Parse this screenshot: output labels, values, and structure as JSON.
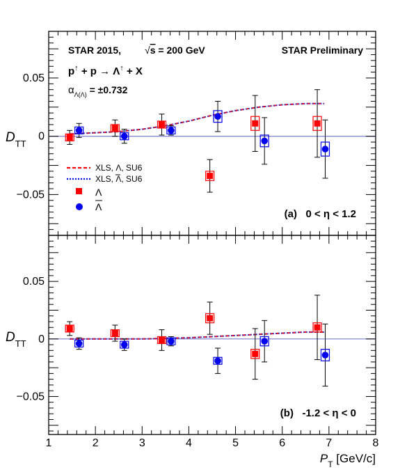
{
  "chart_data": {
    "type": "scatter",
    "x_axis": {
      "label": "P",
      "label_sub": "T",
      "label_unit": " [GeV/c]",
      "range": [
        1,
        8
      ],
      "ticks": [
        "1",
        "2",
        "3",
        "4",
        "5",
        "6",
        "7",
        "8"
      ]
    },
    "y_axis_label": "D",
    "y_axis_label_sub": "TT",
    "y_ticks": [
      "0.05",
      "0",
      "−0.05"
    ],
    "header": {
      "experiment": "STAR 2015,",
      "energy_sqrt": "√",
      "energy_s": "s",
      "energy_value": " = 200 GeV",
      "preliminary": "STAR Preliminary",
      "reaction_part1": "p",
      "reaction_up1": "↑",
      "reaction_part2": " + p → Λ",
      "reaction_up2": "↑",
      "reaction_part3": " + X",
      "alpha_symbol": "α",
      "alpha_sub": "Λ(Λ)",
      "alpha_value": " = ±0.732"
    },
    "legend": {
      "placement": "center-left of top panel",
      "entries": [
        {
          "text": "XLS, Λ, SU6",
          "style": "dashed",
          "color": "#ff0000"
        },
        {
          "text": "XLS, Λ, SU6",
          "style": "dotted",
          "color": "#0000ee",
          "overline": true
        },
        {
          "text": "Λ",
          "marker": "square",
          "color": "#ff0000"
        },
        {
          "text": "Λ",
          "marker": "circle",
          "color": "#0000ee",
          "overline": true
        }
      ]
    },
    "colors": {
      "lambda": "#ff0000",
      "antilambda": "#0000ee",
      "theory": "#7733aa",
      "zero_line": "#8a8ad8"
    },
    "panels": [
      {
        "label": "(a)   0 < η < 1.2",
        "ylim": [
          -0.085,
          0.09
        ],
        "lambda": [
          {
            "x": 1.45,
            "y": -0.001,
            "err": 0.006,
            "sys": 0.003
          },
          {
            "x": 2.42,
            "y": 0.007,
            "err": 0.007,
            "sys": 0.003
          },
          {
            "x": 3.42,
            "y": 0.01,
            "err": 0.009,
            "sys": 0.003
          },
          {
            "x": 4.45,
            "y": -0.034,
            "err": 0.014,
            "sys": 0.004
          },
          {
            "x": 5.42,
            "y": 0.011,
            "err": 0.024,
            "sys": 0.006
          },
          {
            "x": 6.75,
            "y": 0.011,
            "err": 0.029,
            "sys": 0.006
          }
        ],
        "antilambda": [
          {
            "x": 1.65,
            "y": 0.005,
            "err": 0.006,
            "sys": 0.003
          },
          {
            "x": 2.62,
            "y": 0.0,
            "err": 0.006,
            "sys": 0.003
          },
          {
            "x": 3.62,
            "y": 0.005,
            "err": 0.004,
            "sys": 0.003
          },
          {
            "x": 4.62,
            "y": 0.017,
            "err": 0.013,
            "sys": 0.005
          },
          {
            "x": 5.62,
            "y": -0.004,
            "err": 0.02,
            "sys": 0.005
          },
          {
            "x": 6.92,
            "y": -0.011,
            "err": 0.025,
            "sys": 0.006
          }
        ],
        "theory": {
          "x": [
            1.45,
            2.0,
            2.5,
            3.0,
            3.5,
            4.0,
            4.5,
            5.0,
            5.5,
            6.0,
            6.5,
            6.9
          ],
          "lambda": [
            0.002,
            0.003,
            0.004,
            0.006,
            0.009,
            0.013,
            0.018,
            0.022,
            0.025,
            0.027,
            0.028,
            0.028
          ],
          "antilambda": [
            0.002,
            0.003,
            0.004,
            0.006,
            0.009,
            0.013,
            0.018,
            0.022,
            0.025,
            0.027,
            0.028,
            0.028
          ]
        }
      },
      {
        "label": "(b)   -1.2 < η < 0",
        "ylim": [
          -0.083,
          0.09
        ],
        "lambda": [
          {
            "x": 1.45,
            "y": 0.009,
            "err": 0.006,
            "sys": 0.003
          },
          {
            "x": 2.42,
            "y": 0.005,
            "err": 0.007,
            "sys": 0.003
          },
          {
            "x": 3.42,
            "y": -0.001,
            "err": 0.009,
            "sys": 0.003
          },
          {
            "x": 4.45,
            "y": 0.018,
            "err": 0.014,
            "sys": 0.004
          },
          {
            "x": 5.42,
            "y": -0.013,
            "err": 0.022,
            "sys": 0.004
          },
          {
            "x": 6.75,
            "y": 0.01,
            "err": 0.028,
            "sys": 0.004
          }
        ],
        "antilambda": [
          {
            "x": 1.65,
            "y": -0.004,
            "err": 0.005,
            "sys": 0.003
          },
          {
            "x": 2.62,
            "y": -0.005,
            "err": 0.005,
            "sys": 0.003
          },
          {
            "x": 3.62,
            "y": -0.002,
            "err": 0.004,
            "sys": 0.003
          },
          {
            "x": 4.62,
            "y": -0.019,
            "err": 0.011,
            "sys": 0.003
          },
          {
            "x": 5.62,
            "y": -0.002,
            "err": 0.018,
            "sys": 0.004
          },
          {
            "x": 6.92,
            "y": -0.014,
            "err": 0.027,
            "sys": 0.005
          }
        ],
        "theory": {
          "x": [
            1.45,
            2.0,
            2.5,
            3.0,
            3.5,
            4.0,
            4.5,
            5.0,
            5.5,
            6.0,
            6.5,
            6.9
          ],
          "lambda": [
            0.0,
            0.0,
            0.0,
            0.0,
            0.0005,
            0.001,
            0.002,
            0.003,
            0.004,
            0.005,
            0.006,
            0.006
          ],
          "antilambda": [
            0.0,
            0.0,
            0.0,
            0.0,
            0.0005,
            0.001,
            0.002,
            0.003,
            0.004,
            0.005,
            0.006,
            0.006
          ]
        }
      }
    ]
  }
}
